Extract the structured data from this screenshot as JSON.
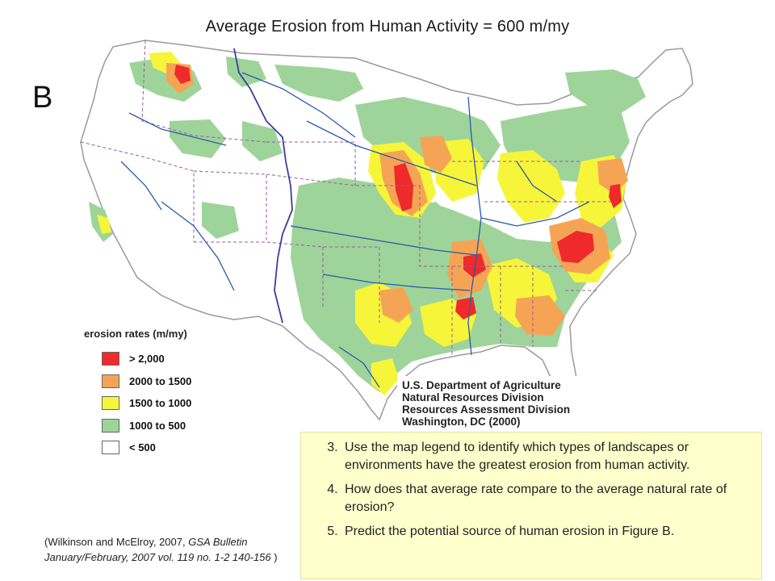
{
  "title": "Average Erosion from Human Activity = 600 m/my",
  "figure_letter": "B",
  "legend": {
    "title": "erosion rates (m/my)",
    "items": [
      {
        "label": "> 2,000",
        "color": "#ee2a2a"
      },
      {
        "label": "2000 to 1500",
        "color": "#f5a455"
      },
      {
        "label": "1500 to 1000",
        "color": "#f7f53a"
      },
      {
        "label": "1000 to 500",
        "color": "#9ed49a"
      },
      {
        "label": "< 500",
        "color": "#ffffff"
      }
    ]
  },
  "map_colors": {
    "land": "#ffffff",
    "border": "#9a9a9a",
    "state_lines": "#9b5aa0",
    "rivers": "#2c5aa8",
    "divide": "#3a3f9a"
  },
  "agency": {
    "line1": "U.S. Department of Agriculture",
    "line2": "Natural Resources Division",
    "line3": "Resources Assessment Division",
    "line4": "Washington, DC  (2000)"
  },
  "citation": {
    "prefix": "(Wilkinson and McElroy, 2007,",
    "journal": "GSA Bulletin",
    "line2": "January/February, 2007 vol. 119 no. 1-2 140-156",
    "suffix": " )"
  },
  "questions": [
    {
      "text": "Use the map legend to identify which types of landscapes or environments have the greatest erosion from human activity."
    },
    {
      "text": "How does that average rate compare to the average natural rate of erosion?"
    },
    {
      "text": "Predict the potential source of human erosion in Figure B."
    }
  ]
}
